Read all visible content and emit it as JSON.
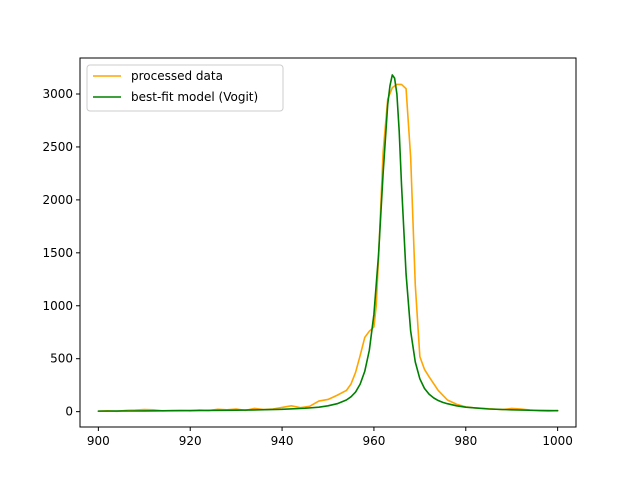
{
  "chart_data": {
    "type": "line",
    "title": "",
    "xlabel": "",
    "ylabel": "",
    "xlim": [
      896,
      1004
    ],
    "ylim": [
      -145,
      3340
    ],
    "xticks": [
      900,
      920,
      940,
      960,
      980,
      1000
    ],
    "yticks": [
      0,
      500,
      1000,
      1500,
      2000,
      2500,
      3000
    ],
    "grid": false,
    "legend_position": "top-left",
    "series": [
      {
        "name": "processed data",
        "color": "#ffa500",
        "x": [
          900,
          902,
          904,
          906,
          908,
          910,
          912,
          914,
          916,
          918,
          920,
          922,
          924,
          926,
          928,
          930,
          932,
          934,
          936,
          938,
          940,
          942,
          944,
          946,
          948,
          950,
          952,
          954,
          955,
          956,
          957,
          958,
          959,
          960,
          960.5,
          961,
          962,
          963,
          964,
          965,
          966,
          967,
          968,
          969,
          970,
          971,
          972,
          974,
          976,
          978,
          980,
          982,
          984,
          986,
          988,
          990,
          992,
          994,
          996,
          998,
          1000
        ],
        "y": [
          5,
          8,
          3,
          12,
          15,
          20,
          18,
          8,
          10,
          12,
          8,
          15,
          10,
          22,
          18,
          25,
          12,
          30,
          20,
          25,
          40,
          55,
          38,
          50,
          100,
          115,
          155,
          200,
          260,
          370,
          530,
          700,
          760,
          800,
          1000,
          1450,
          2450,
          2950,
          3060,
          3090,
          3090,
          3050,
          2400,
          1200,
          520,
          400,
          330,
          200,
          110,
          70,
          45,
          35,
          30,
          25,
          20,
          30,
          25,
          15,
          8,
          5,
          10
        ]
      },
      {
        "name": "best-fit model (Vogit)",
        "color": "#008000",
        "x": [
          900,
          910,
          920,
          930,
          935,
          940,
          945,
          948,
          950,
          952,
          954,
          955,
          956,
          957,
          958,
          959,
          960,
          961,
          962,
          963,
          963.5,
          964,
          964.5,
          965,
          965.5,
          966,
          967,
          968,
          969,
          970,
          971,
          972,
          973,
          974,
          975,
          976,
          978,
          980,
          985,
          990,
          995,
          1000
        ],
        "y": [
          5,
          7,
          10,
          14,
          17,
          22,
          32,
          42,
          55,
          75,
          110,
          140,
          185,
          260,
          380,
          580,
          920,
          1480,
          2250,
          2900,
          3080,
          3180,
          3150,
          3000,
          2650,
          2150,
          1300,
          760,
          470,
          310,
          220,
          165,
          130,
          105,
          88,
          75,
          55,
          42,
          25,
          17,
          12,
          9
        ]
      }
    ]
  }
}
